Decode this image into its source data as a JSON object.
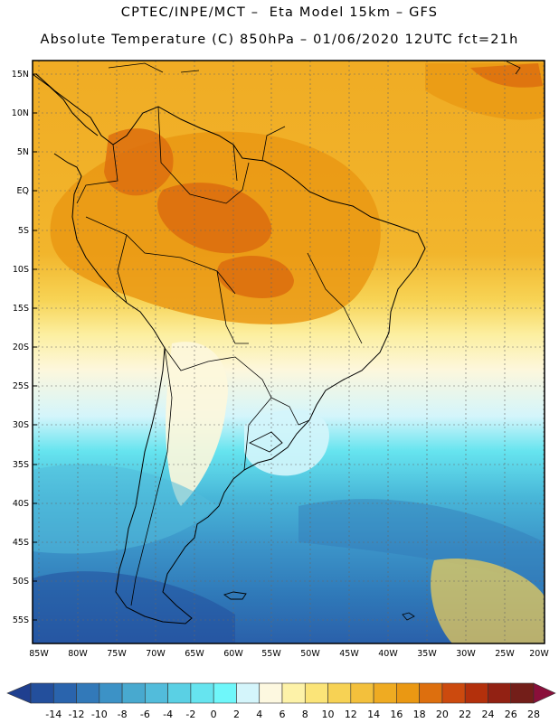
{
  "header": {
    "title_line1": "CPTEC/INPE/MCT –  Eta Model 15km – GFS",
    "title_line2": "Absolute Temperature (C) 850hPa – 01/06/2020 12UTC fct=21h"
  },
  "map": {
    "lat_labels": [
      "15N",
      "10N",
      "5N",
      "EQ",
      "5S",
      "10S",
      "15S",
      "20S",
      "25S",
      "30S",
      "35S",
      "40S",
      "45S",
      "50S",
      "55S"
    ],
    "lon_labels": [
      "85W",
      "80W",
      "75W",
      "70W",
      "65W",
      "60W",
      "55W",
      "50W",
      "45W",
      "40W",
      "35W",
      "30W",
      "25W",
      "20W"
    ]
  },
  "colorbar": {
    "ticks": [
      "-14",
      "-12",
      "-10",
      "-8",
      "-6",
      "-4",
      "-2",
      "0",
      "2",
      "4",
      "6",
      "8",
      "10",
      "12",
      "14",
      "16",
      "18",
      "20",
      "22",
      "24",
      "26",
      "28"
    ],
    "colors": [
      "#1f3f8f",
      "#234f9c",
      "#2a64ad",
      "#3279b9",
      "#3c92c6",
      "#48a9cf",
      "#52bcdb",
      "#5ad0e4",
      "#66e4ef",
      "#6ff7fa",
      "#d4f5fb",
      "#fdf8e0",
      "#fdf2a8",
      "#fbe478",
      "#f7d254",
      "#f3c03c",
      "#efab22",
      "#ea9813",
      "#dd6f0e",
      "#cc4a0e",
      "#b3300c",
      "#922113",
      "#731e19",
      "#8a0f3a"
    ]
  }
}
